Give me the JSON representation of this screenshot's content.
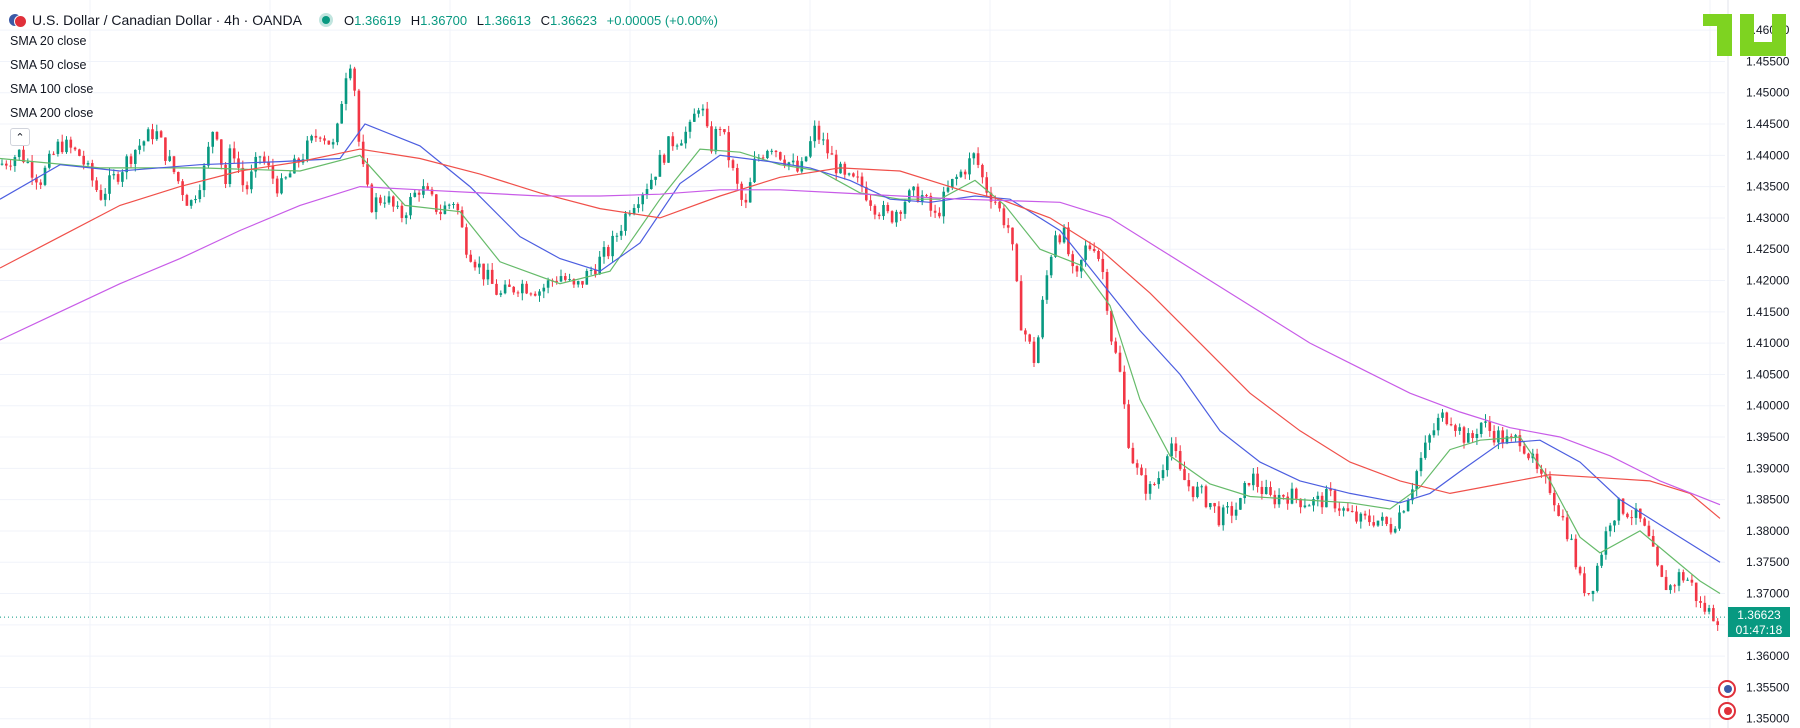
{
  "header": {
    "symbol": "U.S. Dollar / Canadian Dollar · 4h · OANDA",
    "o_label": "O",
    "o_value": "1.36619",
    "h_label": "H",
    "h_value": "1.36700",
    "l_label": "L",
    "l_value": "1.36613",
    "c_label": "C",
    "c_value": "1.36623",
    "change": "+0.00005 (+0.00%)"
  },
  "indicators": [
    {
      "label": "SMA 20 close",
      "color": "#66bb6a"
    },
    {
      "label": "SMA 50 close",
      "color": "#4c5ee0"
    },
    {
      "label": "SMA 100 close",
      "color": "#f0504a"
    },
    {
      "label": "SMA 200 close",
      "color": "#c85ce8"
    }
  ],
  "price_badge": {
    "price": "1.36623",
    "timer": "01:47:18"
  },
  "colors": {
    "up": "#089981",
    "down": "#f23645",
    "grid": "#f0f3fa",
    "logo": "#7ed321"
  },
  "chart_data": {
    "type": "candlestick",
    "y_ticks": [
      "1.35000",
      "1.35500",
      "1.36000",
      "1.36500",
      "1.37000",
      "1.37500",
      "1.38000",
      "1.38500",
      "1.39000",
      "1.39500",
      "1.40000",
      "1.40500",
      "1.41000",
      "1.41500",
      "1.42000",
      "1.42500",
      "1.43000",
      "1.43500",
      "1.44000",
      "1.44500",
      "1.45000",
      "1.45500",
      "1.46000"
    ],
    "ylim": [
      1.3498,
      1.4613
    ],
    "last_price": 1.36623,
    "close_path": [
      [
        0,
        1.4385
      ],
      [
        20,
        1.4405
      ],
      [
        40,
        1.436
      ],
      [
        60,
        1.442
      ],
      [
        80,
        1.44
      ],
      [
        100,
        1.4335
      ],
      [
        115,
        1.4365
      ],
      [
        135,
        1.441
      ],
      [
        155,
        1.444
      ],
      [
        175,
        1.437
      ],
      [
        190,
        1.432
      ],
      [
        205,
        1.438
      ],
      [
        215,
        1.446
      ],
      [
        225,
        1.435
      ],
      [
        232,
        1.442
      ],
      [
        245,
        1.434
      ],
      [
        260,
        1.44
      ],
      [
        280,
        1.4345
      ],
      [
        300,
        1.4395
      ],
      [
        320,
        1.444
      ],
      [
        335,
        1.441
      ],
      [
        345,
        1.453
      ],
      [
        352,
        1.456
      ],
      [
        360,
        1.44
      ],
      [
        370,
        1.432
      ],
      [
        385,
        1.4335
      ],
      [
        400,
        1.43
      ],
      [
        420,
        1.435
      ],
      [
        440,
        1.431
      ],
      [
        455,
        1.433
      ],
      [
        465,
        1.426
      ],
      [
        480,
        1.422
      ],
      [
        500,
        1.4175
      ],
      [
        520,
        1.4195
      ],
      [
        540,
        1.4185
      ],
      [
        560,
        1.421
      ],
      [
        575,
        1.4185
      ],
      [
        590,
        1.4215
      ],
      [
        610,
        1.425
      ],
      [
        630,
        1.432
      ],
      [
        650,
        1.436
      ],
      [
        670,
        1.442
      ],
      [
        690,
        1.444
      ],
      [
        700,
        1.449
      ],
      [
        710,
        1.441
      ],
      [
        720,
        1.445
      ],
      [
        735,
        1.436
      ],
      [
        745,
        1.431
      ],
      [
        755,
        1.439
      ],
      [
        770,
        1.442
      ],
      [
        785,
        1.4395
      ],
      [
        800,
        1.437
      ],
      [
        815,
        1.444
      ],
      [
        830,
        1.44
      ],
      [
        845,
        1.436
      ],
      [
        860,
        1.4355
      ],
      [
        875,
        1.432
      ],
      [
        890,
        1.43
      ],
      [
        905,
        1.433
      ],
      [
        920,
        1.434
      ],
      [
        935,
        1.43
      ],
      [
        950,
        1.435
      ],
      [
        965,
        1.438
      ],
      [
        975,
        1.44
      ],
      [
        985,
        1.435
      ],
      [
        995,
        1.433
      ],
      [
        1000,
        1.431
      ],
      [
        1010,
        1.428
      ],
      [
        1020,
        1.414
      ],
      [
        1035,
        1.407
      ],
      [
        1045,
        1.419
      ],
      [
        1055,
        1.428
      ],
      [
        1065,
        1.427
      ],
      [
        1075,
        1.419
      ],
      [
        1085,
        1.425
      ],
      [
        1095,
        1.426
      ],
      [
        1105,
        1.42
      ],
      [
        1110,
        1.412
      ],
      [
        1120,
        1.405
      ],
      [
        1130,
        1.393
      ],
      [
        1140,
        1.388
      ],
      [
        1150,
        1.3865
      ],
      [
        1160,
        1.389
      ],
      [
        1170,
        1.395
      ],
      [
        1180,
        1.389
      ],
      [
        1190,
        1.387
      ],
      [
        1200,
        1.386
      ],
      [
        1210,
        1.3845
      ],
      [
        1220,
        1.382
      ],
      [
        1230,
        1.383
      ],
      [
        1240,
        1.384
      ],
      [
        1250,
        1.389
      ],
      [
        1260,
        1.387
      ],
      [
        1270,
        1.385
      ],
      [
        1285,
        1.386
      ],
      [
        1300,
        1.385
      ],
      [
        1315,
        1.3845
      ],
      [
        1330,
        1.3855
      ],
      [
        1345,
        1.383
      ],
      [
        1360,
        1.3815
      ],
      [
        1375,
        1.382
      ],
      [
        1390,
        1.3805
      ],
      [
        1400,
        1.383
      ],
      [
        1410,
        1.3865
      ],
      [
        1420,
        1.391
      ],
      [
        1430,
        1.395
      ],
      [
        1440,
        1.398
      ],
      [
        1450,
        1.3985
      ],
      [
        1460,
        1.396
      ],
      [
        1470,
        1.394
      ],
      [
        1480,
        1.3975
      ],
      [
        1490,
        1.396
      ],
      [
        1500,
        1.395
      ],
      [
        1510,
        1.394
      ],
      [
        1520,
        1.395
      ],
      [
        1530,
        1.392
      ],
      [
        1540,
        1.388
      ],
      [
        1550,
        1.387
      ],
      [
        1560,
        1.383
      ],
      [
        1570,
        1.379
      ],
      [
        1580,
        1.372
      ],
      [
        1590,
        1.37
      ],
      [
        1600,
        1.376
      ],
      [
        1610,
        1.382
      ],
      [
        1620,
        1.384
      ],
      [
        1630,
        1.383
      ],
      [
        1640,
        1.3815
      ],
      [
        1650,
        1.378
      ],
      [
        1660,
        1.372
      ],
      [
        1670,
        1.371
      ],
      [
        1680,
        1.373
      ],
      [
        1690,
        1.372
      ],
      [
        1700,
        1.368
      ],
      [
        1710,
        1.367
      ],
      [
        1720,
        1.3662
      ]
    ],
    "sma": {
      "SMA 20 close": [
        [
          0,
          1.4395
        ],
        [
          100,
          1.438
        ],
        [
          200,
          1.438
        ],
        [
          300,
          1.4375
        ],
        [
          360,
          1.44
        ],
        [
          405,
          1.432
        ],
        [
          460,
          1.431
        ],
        [
          500,
          1.423
        ],
        [
          560,
          1.4195
        ],
        [
          610,
          1.4215
        ],
        [
          660,
          1.433
        ],
        [
          700,
          1.441
        ],
        [
          740,
          1.4405
        ],
        [
          780,
          1.4385
        ],
        [
          820,
          1.4375
        ],
        [
          860,
          1.434
        ],
        [
          900,
          1.433
        ],
        [
          940,
          1.433
        ],
        [
          975,
          1.436
        ],
        [
          1005,
          1.432
        ],
        [
          1040,
          1.425
        ],
        [
          1080,
          1.4225
        ],
        [
          1110,
          1.416
        ],
        [
          1140,
          1.401
        ],
        [
          1170,
          1.392
        ],
        [
          1210,
          1.3875
        ],
        [
          1250,
          1.3855
        ],
        [
          1300,
          1.385
        ],
        [
          1350,
          1.3845
        ],
        [
          1390,
          1.3835
        ],
        [
          1420,
          1.387
        ],
        [
          1450,
          1.393
        ],
        [
          1480,
          1.3945
        ],
        [
          1520,
          1.395
        ],
        [
          1550,
          1.388
        ],
        [
          1580,
          1.379
        ],
        [
          1600,
          1.3765
        ],
        [
          1640,
          1.38
        ],
        [
          1670,
          1.376
        ],
        [
          1700,
          1.372
        ],
        [
          1720,
          1.37
        ]
      ],
      "SMA 50 close": [
        [
          0,
          1.433
        ],
        [
          60,
          1.4385
        ],
        [
          120,
          1.4375
        ],
        [
          200,
          1.4385
        ],
        [
          280,
          1.439
        ],
        [
          340,
          1.4395
        ],
        [
          365,
          1.445
        ],
        [
          420,
          1.4415
        ],
        [
          470,
          1.435
        ],
        [
          520,
          1.427
        ],
        [
          560,
          1.4235
        ],
        [
          600,
          1.4215
        ],
        [
          640,
          1.426
        ],
        [
          680,
          1.4355
        ],
        [
          720,
          1.44
        ],
        [
          770,
          1.439
        ],
        [
          810,
          1.438
        ],
        [
          850,
          1.436
        ],
        [
          890,
          1.433
        ],
        [
          930,
          1.4325
        ],
        [
          975,
          1.4335
        ],
        [
          1010,
          1.433
        ],
        [
          1060,
          1.428
        ],
        [
          1100,
          1.42
        ],
        [
          1140,
          1.412
        ],
        [
          1180,
          1.405
        ],
        [
          1220,
          1.396
        ],
        [
          1260,
          1.391
        ],
        [
          1300,
          1.388
        ],
        [
          1350,
          1.386
        ],
        [
          1400,
          1.3845
        ],
        [
          1430,
          1.386
        ],
        [
          1460,
          1.3895
        ],
        [
          1500,
          1.394
        ],
        [
          1540,
          1.3945
        ],
        [
          1580,
          1.391
        ],
        [
          1620,
          1.385
        ],
        [
          1660,
          1.381
        ],
        [
          1700,
          1.377
        ],
        [
          1720,
          1.375
        ]
      ],
      "SMA 100 close": [
        [
          0,
          1.422
        ],
        [
          60,
          1.427
        ],
        [
          120,
          1.432
        ],
        [
          180,
          1.435
        ],
        [
          240,
          1.4375
        ],
        [
          300,
          1.439
        ],
        [
          360,
          1.441
        ],
        [
          420,
          1.4395
        ],
        [
          480,
          1.437
        ],
        [
          540,
          1.434
        ],
        [
          600,
          1.4315
        ],
        [
          660,
          1.43
        ],
        [
          720,
          1.4335
        ],
        [
          780,
          1.4365
        ],
        [
          840,
          1.438
        ],
        [
          900,
          1.4375
        ],
        [
          960,
          1.4345
        ],
        [
          1000,
          1.433
        ],
        [
          1050,
          1.43
        ],
        [
          1100,
          1.425
        ],
        [
          1150,
          1.418
        ],
        [
          1200,
          1.41
        ],
        [
          1250,
          1.402
        ],
        [
          1300,
          1.396
        ],
        [
          1350,
          1.391
        ],
        [
          1400,
          1.388
        ],
        [
          1450,
          1.386
        ],
        [
          1500,
          1.3875
        ],
        [
          1550,
          1.389
        ],
        [
          1600,
          1.3885
        ],
        [
          1650,
          1.388
        ],
        [
          1690,
          1.386
        ],
        [
          1720,
          1.382
        ]
      ],
      "SMA 200 close": [
        [
          0,
          1.4105
        ],
        [
          60,
          1.415
        ],
        [
          120,
          1.4195
        ],
        [
          180,
          1.4235
        ],
        [
          240,
          1.428
        ],
        [
          300,
          1.432
        ],
        [
          360,
          1.435
        ],
        [
          420,
          1.4345
        ],
        [
          480,
          1.434
        ],
        [
          540,
          1.4335
        ],
        [
          600,
          1.4335
        ],
        [
          660,
          1.4338
        ],
        [
          720,
          1.4345
        ],
        [
          780,
          1.4345
        ],
        [
          840,
          1.434
        ],
        [
          900,
          1.4335
        ],
        [
          960,
          1.433
        ],
        [
          1000,
          1.4328
        ],
        [
          1060,
          1.4325
        ],
        [
          1110,
          1.43
        ],
        [
          1160,
          1.425
        ],
        [
          1210,
          1.42
        ],
        [
          1260,
          1.415
        ],
        [
          1310,
          1.41
        ],
        [
          1360,
          1.406
        ],
        [
          1410,
          1.402
        ],
        [
          1460,
          1.399
        ],
        [
          1510,
          1.3965
        ],
        [
          1560,
          1.395
        ],
        [
          1610,
          1.392
        ],
        [
          1660,
          1.388
        ],
        [
          1720,
          1.3842
        ]
      ]
    }
  }
}
